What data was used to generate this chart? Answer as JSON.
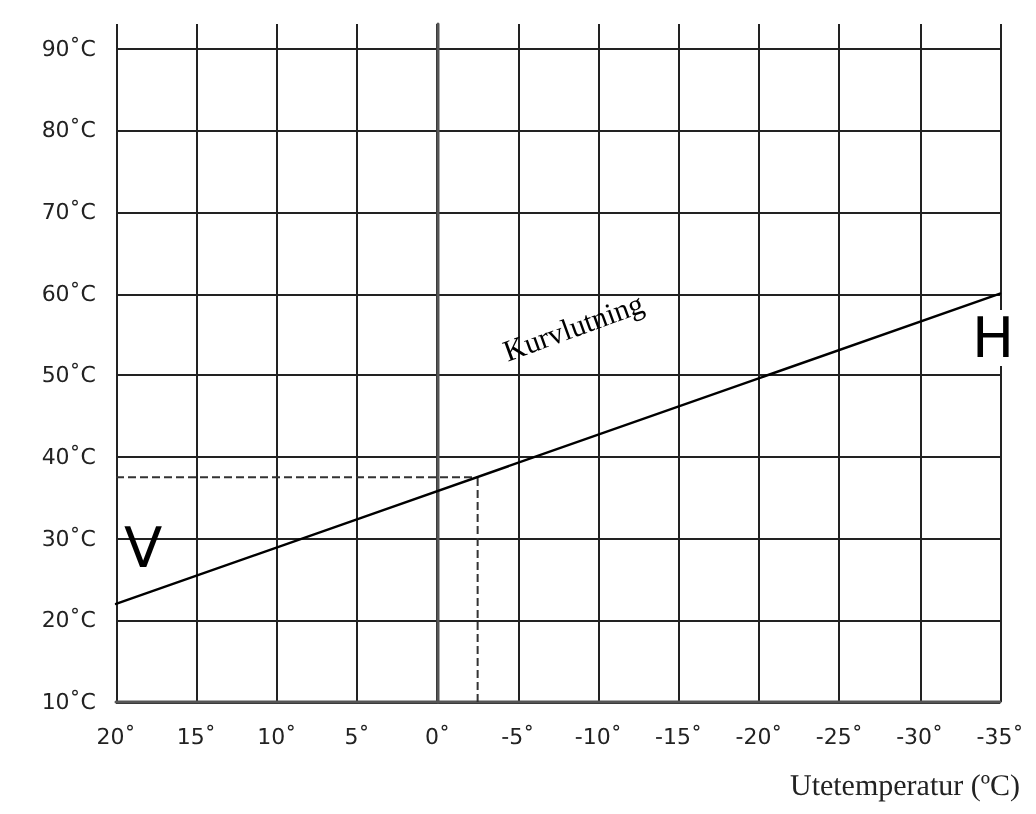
{
  "chart_data": {
    "type": "line",
    "xlabel": "Utetemperatur (ºC)",
    "x": [
      20,
      -35
    ],
    "series": [
      {
        "color": "#000000",
        "values": [
          22,
          60
        ]
      }
    ],
    "xlim": [
      20,
      -35
    ],
    "xticks": [
      {
        "value": 20,
        "label": "20˚"
      },
      {
        "value": 15,
        "label": "15˚"
      },
      {
        "value": 10,
        "label": "10˚"
      },
      {
        "value": 5,
        "label": "5˚"
      },
      {
        "value": 0,
        "label": "0˚"
      },
      {
        "value": -5,
        "label": "-5˚"
      },
      {
        "value": -10,
        "label": "-10˚"
      },
      {
        "value": -15,
        "label": "-15˚"
      },
      {
        "value": -20,
        "label": "-20˚"
      },
      {
        "value": -25,
        "label": "-25˚"
      },
      {
        "value": -30,
        "label": "-30˚"
      },
      {
        "value": -35,
        "label": "-35˚"
      }
    ],
    "ylim": [
      10,
      93
    ],
    "yticks": [
      {
        "value": 10,
        "label": "10˚C"
      },
      {
        "value": 20,
        "label": "20˚C"
      },
      {
        "value": 30,
        "label": "30˚C"
      },
      {
        "value": 40,
        "label": "40˚C"
      },
      {
        "value": 50,
        "label": "50˚C"
      },
      {
        "value": 60,
        "label": "60˚C"
      },
      {
        "value": 70,
        "label": "70˚C"
      },
      {
        "value": 80,
        "label": "80˚C"
      },
      {
        "value": 90,
        "label": "90˚C"
      }
    ],
    "ref_lines": [
      {
        "axis": "x",
        "value": -2.5,
        "line_style": "dashed",
        "color": "#333333"
      },
      {
        "axis": "y",
        "value": 37.5,
        "line_style": "dashed",
        "color": "#333333"
      }
    ],
    "annotations": [
      "Kurvlutning",
      "V",
      "H"
    ],
    "grid": true,
    "marker": "none",
    "line_style": "solid"
  }
}
